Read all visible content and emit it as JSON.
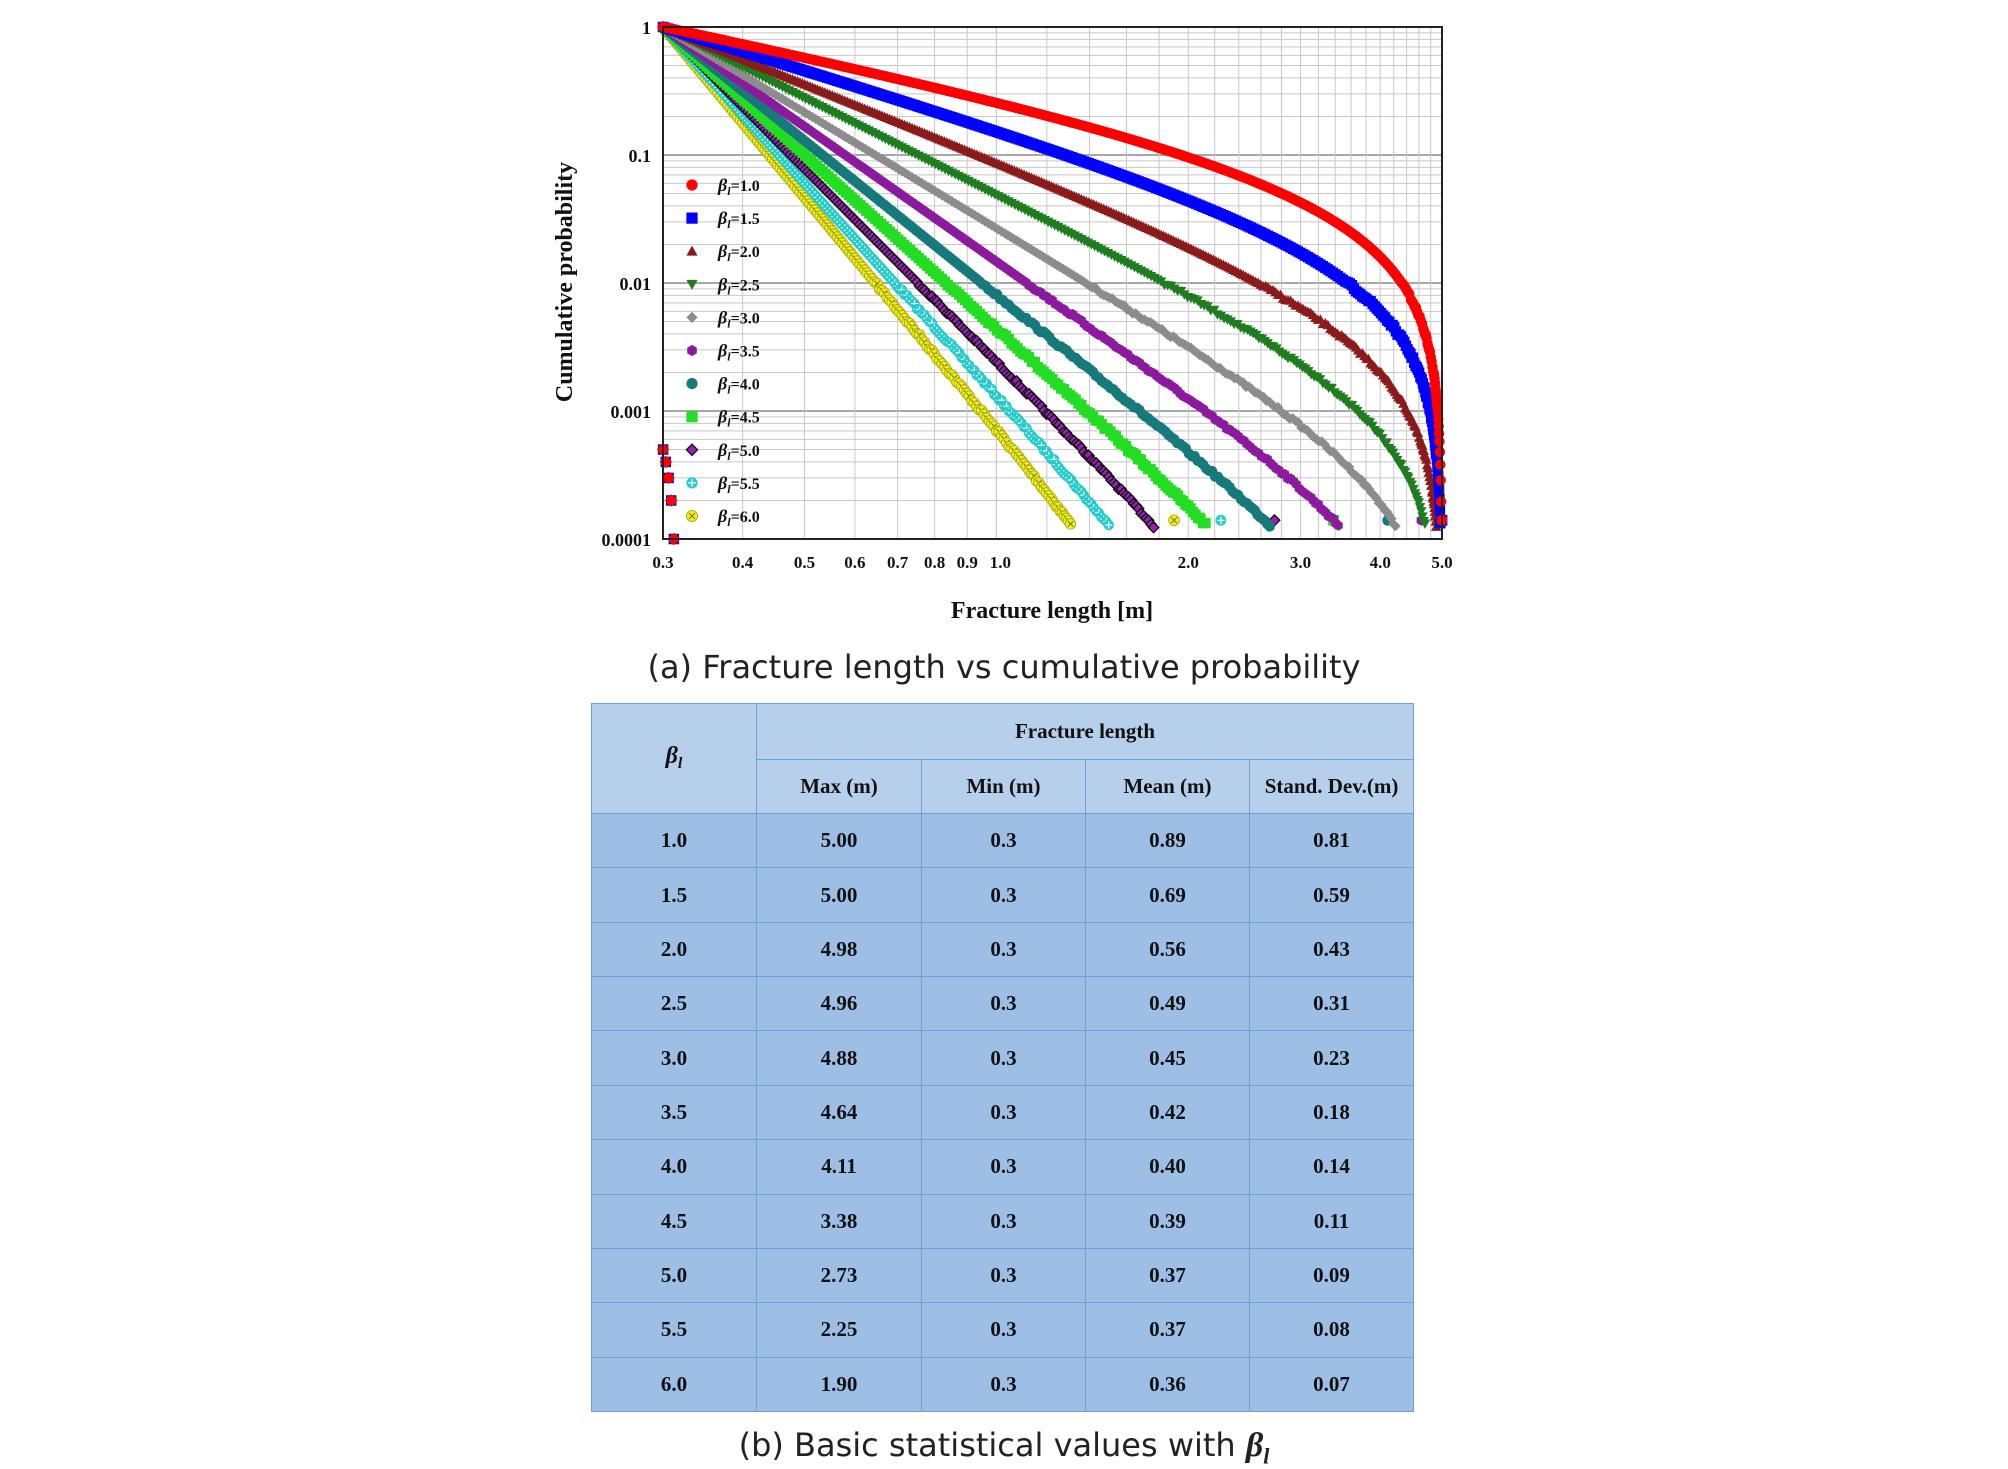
{
  "chart_data": {
    "type": "scatter",
    "title": "",
    "xlabel": "Fracture length [m]",
    "ylabel": "Cumulative probability",
    "xscale": "log",
    "yscale": "log",
    "xlim": [
      0.3,
      5.0
    ],
    "ylim": [
      0.0001,
      1
    ],
    "x_ticks": [
      "0.3",
      "0.4",
      "0.5",
      "0.6",
      "0.7",
      "0.8",
      "0.9",
      "1.0",
      "2.0",
      "3.0",
      "4.0",
      "5.0"
    ],
    "x_tick_values": [
      0.3,
      0.4,
      0.5,
      0.6,
      0.7,
      0.8,
      0.9,
      1.0,
      2.0,
      3.0,
      4.0,
      5.0
    ],
    "y_ticks": [
      "1",
      "0.1",
      "0.01",
      "0.001",
      "0.0001"
    ],
    "y_tick_values": [
      1,
      0.1,
      0.01,
      0.001,
      0.0001
    ],
    "grid": true,
    "legend_position": "left",
    "legend_symbol": "β",
    "legend_subscript": "l",
    "series": [
      {
        "name": "=1.0",
        "beta": 1.0,
        "color": "#ff0000",
        "marker": "circle",
        "x_max": 5.0
      },
      {
        "name": "=1.5",
        "beta": 1.5,
        "color": "#0000ff",
        "marker": "square",
        "x_max": 5.0
      },
      {
        "name": "=2.0",
        "beta": 2.0,
        "color": "#8b1a1a",
        "marker": "triangle-up",
        "x_max": 4.98
      },
      {
        "name": "=2.5",
        "beta": 2.5,
        "color": "#1e7d1e",
        "marker": "triangle-down",
        "x_max": 4.96
      },
      {
        "name": "=3.0",
        "beta": 3.0,
        "color": "#8c8c8c",
        "marker": "diamond",
        "x_max": 4.88
      },
      {
        "name": "=3.5",
        "beta": 3.5,
        "color": "#8b1a9e",
        "marker": "hexagon",
        "x_max": 4.64
      },
      {
        "name": "=4.0",
        "beta": 4.0,
        "color": "#16797a",
        "marker": "circle",
        "x_max": 4.11
      },
      {
        "name": "=4.5",
        "beta": 4.5,
        "color": "#22dd22",
        "marker": "square",
        "x_max": 3.38
      },
      {
        "name": "=5.0",
        "beta": 5.0,
        "color": "#9a1fb5",
        "marker": "diamond-outline",
        "x_max": 2.73
      },
      {
        "name": "=5.5",
        "beta": 5.5,
        "color": "#22cccc",
        "marker": "cross-circle",
        "x_max": 2.25
      },
      {
        "name": "=6.0",
        "beta": 6.0,
        "color": "#eeee22",
        "marker": "x-circle",
        "x_max": 1.9
      }
    ]
  },
  "caption_a": "(a) Fracture length vs cumulative probability",
  "caption_b_prefix": "(b) Basic statistical values with ",
  "caption_b_symbol": "β",
  "caption_b_subscript": "l",
  "table": {
    "beta_header": "β",
    "beta_sub": "l",
    "group_header": "Fracture length",
    "columns": [
      "Max (m)",
      "Min (m)",
      "Mean (m)",
      "Stand. Dev.(m)"
    ],
    "rows": [
      [
        "1.0",
        "5.00",
        "0.3",
        "0.89",
        "0.81"
      ],
      [
        "1.5",
        "5.00",
        "0.3",
        "0.69",
        "0.59"
      ],
      [
        "2.0",
        "4.98",
        "0.3",
        "0.56",
        "0.43"
      ],
      [
        "2.5",
        "4.96",
        "0.3",
        "0.49",
        "0.31"
      ],
      [
        "3.0",
        "4.88",
        "0.3",
        "0.45",
        "0.23"
      ],
      [
        "3.5",
        "4.64",
        "0.3",
        "0.42",
        "0.18"
      ],
      [
        "4.0",
        "4.11",
        "0.3",
        "0.40",
        "0.14"
      ],
      [
        "4.5",
        "3.38",
        "0.3",
        "0.39",
        "0.11"
      ],
      [
        "5.0",
        "2.73",
        "0.3",
        "0.37",
        "0.09"
      ],
      [
        "5.5",
        "2.25",
        "0.3",
        "0.37",
        "0.08"
      ],
      [
        "6.0",
        "1.90",
        "0.3",
        "0.36",
        "0.07"
      ]
    ]
  }
}
